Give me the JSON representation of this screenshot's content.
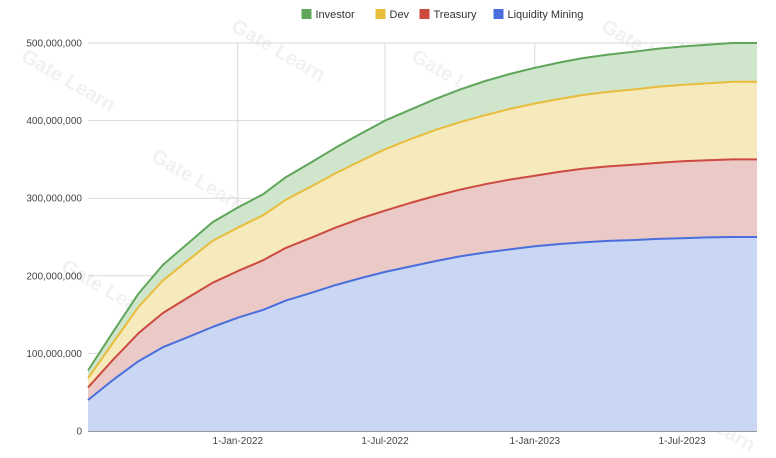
{
  "chart_data": {
    "type": "area",
    "stacked": true,
    "title": "",
    "xlabel": "",
    "ylabel": "",
    "x": [
      "2021-07-01",
      "2021-08-01",
      "2021-09-01",
      "2021-10-01",
      "2021-11-01",
      "2021-12-01",
      "2022-01-01",
      "2022-02-01",
      "2022-03-01",
      "2022-04-01",
      "2022-05-01",
      "2022-06-01",
      "2022-07-01",
      "2022-08-01",
      "2022-09-01",
      "2022-10-01",
      "2022-11-01",
      "2022-12-01",
      "2023-01-01",
      "2023-02-01",
      "2023-03-01",
      "2023-04-01",
      "2023-05-01",
      "2023-06-01",
      "2023-07-01",
      "2023-08-01",
      "2023-09-01",
      "2023-10-01"
    ],
    "series": [
      {
        "name": "Liquidity Mining",
        "color": "#4a6fdc",
        "fill": "#c9d6f4",
        "values": [
          40000000,
          66000000,
          90000000,
          108000000,
          121000000,
          134000000,
          146000000,
          156000000,
          168000000,
          178000000,
          188000000,
          197000000,
          205000000,
          212000000,
          219000000,
          225000000,
          230000000,
          234000000,
          238000000,
          241000000,
          243000000,
          245000000,
          246000000,
          247500000,
          248500000,
          249500000,
          250000000,
          250000000
        ]
      },
      {
        "name": "Treasury",
        "color": "#cc4a3f",
        "fill": "#ebc9c6",
        "values": [
          16000000,
          26000000,
          36000000,
          44000000,
          51000000,
          57000000,
          60000000,
          64000000,
          68000000,
          71000000,
          74000000,
          77000000,
          79000000,
          82000000,
          84000000,
          86000000,
          88000000,
          90000000,
          91000000,
          93000000,
          95000000,
          96000000,
          97000000,
          98000000,
          99000000,
          99500000,
          100000000,
          100000000
        ]
      },
      {
        "name": "Dev",
        "color": "#e9bd3c",
        "fill": "#f6e9bc",
        "values": [
          12000000,
          22000000,
          34000000,
          42000000,
          48000000,
          54000000,
          56000000,
          58000000,
          62000000,
          66000000,
          70000000,
          74000000,
          79000000,
          82000000,
          85000000,
          87000000,
          89000000,
          91000000,
          93000000,
          94000000,
          95000000,
          96000000,
          97000000,
          98000000,
          98500000,
          99000000,
          100000000,
          100000000
        ]
      },
      {
        "name": "Investor",
        "color": "#5fa55a",
        "fill": "#cfe5cc",
        "values": [
          10000000,
          14000000,
          17000000,
          20000000,
          22000000,
          24000000,
          26000000,
          27000000,
          29000000,
          31000000,
          33000000,
          35000000,
          37000000,
          38000000,
          40000000,
          42000000,
          44000000,
          45000000,
          46000000,
          47000000,
          47500000,
          48000000,
          48500000,
          49000000,
          49500000,
          49800000,
          50000000,
          50000000
        ]
      }
    ],
    "ylim": [
      0,
      500000000
    ],
    "yticks": [
      0,
      100000000,
      200000000,
      300000000,
      400000000,
      500000000
    ],
    "ytick_labels": [
      "0",
      "100,000,000",
      "200,000,000",
      "300,000,000",
      "400,000,000",
      "500,000,000"
    ],
    "xticks": [
      "2022-01-01",
      "2022-07-01",
      "2023-01-01",
      "2023-07-01"
    ],
    "xtick_labels": [
      "1-Jan-2022",
      "1-Jul-2022",
      "1-Jan-2023",
      "1-Jul-2023"
    ],
    "legend": {
      "position": "top",
      "order": [
        "Investor",
        "Dev",
        "Treasury",
        "Liquidity Mining"
      ]
    },
    "grid": true
  },
  "watermark": {
    "text": "Gate Learn"
  }
}
